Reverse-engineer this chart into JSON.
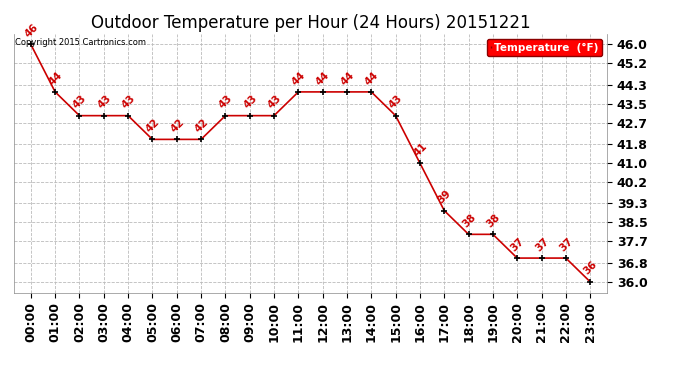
{
  "title": "Outdoor Temperature per Hour (24 Hours) 20151221",
  "hours": [
    0,
    1,
    2,
    3,
    4,
    5,
    6,
    7,
    8,
    9,
    10,
    11,
    12,
    13,
    14,
    15,
    16,
    17,
    18,
    19,
    20,
    21,
    22,
    23
  ],
  "temps": [
    46,
    44,
    43,
    43,
    43,
    42,
    42,
    42,
    43,
    43,
    43,
    44,
    44,
    44,
    44,
    43,
    41,
    39,
    38,
    38,
    37,
    37,
    37,
    36
  ],
  "x_labels": [
    "00:00",
    "01:00",
    "02:00",
    "03:00",
    "04:00",
    "05:00",
    "06:00",
    "07:00",
    "08:00",
    "09:00",
    "10:00",
    "11:00",
    "12:00",
    "13:00",
    "14:00",
    "15:00",
    "16:00",
    "17:00",
    "18:00",
    "19:00",
    "20:00",
    "21:00",
    "22:00",
    "23:00"
  ],
  "y_ticks": [
    36.0,
    36.8,
    37.7,
    38.5,
    39.3,
    40.2,
    41.0,
    41.8,
    42.7,
    43.5,
    44.3,
    45.2,
    46.0
  ],
  "ylim": [
    35.55,
    46.45
  ],
  "line_color": "#cc0000",
  "marker_color": "#000000",
  "label_color": "#cc0000",
  "grid_color": "#bbbbbb",
  "bg_color": "#ffffff",
  "fig_bg_color": "#ffffff",
  "legend_label": "Temperature  (°F)",
  "copyright_text": "Copyright 2015 Cartronics.com",
  "title_fontsize": 12,
  "tick_fontsize": 9,
  "annotation_fontsize": 7.5
}
